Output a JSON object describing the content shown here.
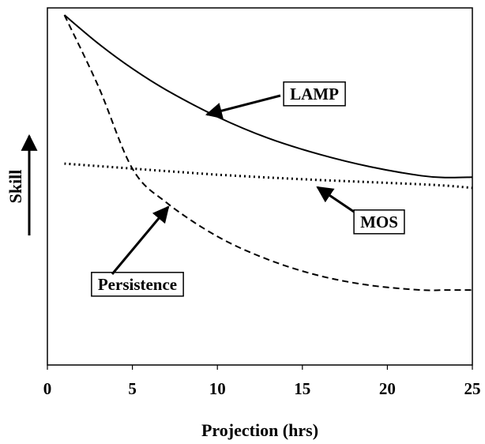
{
  "chart_data": {
    "type": "line",
    "x_label": "Projection (hrs)",
    "y_label": "Skill",
    "x": [
      1,
      3,
      5,
      7,
      10,
      13,
      16,
      19,
      22,
      23.5,
      25
    ],
    "series": [
      {
        "name": "LAMP",
        "color": "#000000",
        "dash": "solid",
        "values": [
          98,
          90,
          83,
          77,
          69.5,
          63.5,
          59,
          55.5,
          53,
          52.5,
          52.6
        ]
      },
      {
        "name": "MOS",
        "color": "#000000",
        "dash": "dotted",
        "values": [
          56.4,
          55.7,
          55,
          54.3,
          53.3,
          52.5,
          51.8,
          51.2,
          50.6,
          50.2,
          49.6
        ]
      },
      {
        "name": "Persistence",
        "color": "#000000",
        "dash": "dashed",
        "values": [
          98,
          78,
          55,
          45.5,
          36,
          29.5,
          25,
          22.3,
          21,
          21,
          21
        ]
      }
    ],
    "xlim": [
      0,
      25
    ],
    "xticks": [
      0,
      5,
      10,
      15,
      20,
      25
    ],
    "ylim": [
      0,
      100
    ]
  }
}
